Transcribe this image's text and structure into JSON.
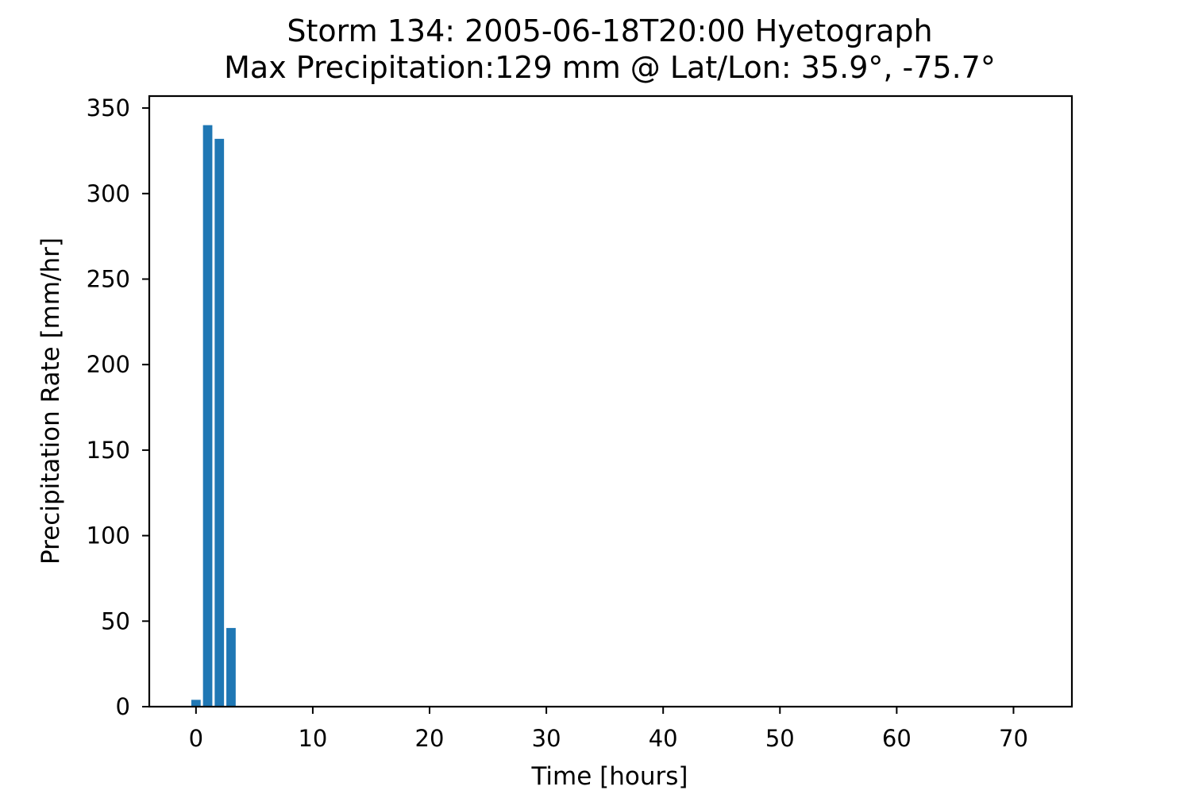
{
  "chart_data": {
    "type": "bar",
    "title": "Storm 134: 2005-06-18T20:00 Hyetograph",
    "subtitle": "Max Precipitation:129 mm @ Lat/Lon:  35.9°, -75.7°",
    "xlabel": "Time [hours]",
    "ylabel": "Precipitation Rate [mm/hr]",
    "x": [
      0,
      1,
      2,
      3,
      4,
      5,
      6,
      7,
      8,
      9,
      10,
      11,
      12,
      13,
      14,
      15,
      16,
      17,
      18,
      19,
      20,
      21,
      22,
      23,
      24,
      25,
      26,
      27,
      28,
      29,
      30,
      31,
      32,
      33,
      34,
      35,
      36,
      37,
      38,
      39,
      40,
      41,
      42,
      43,
      44,
      45,
      46,
      47,
      48,
      49,
      50,
      51,
      52,
      53,
      54,
      55,
      56,
      57,
      58,
      59,
      60,
      61,
      62,
      63,
      64,
      65,
      66,
      67,
      68,
      69,
      70,
      71
    ],
    "values": [
      4,
      340,
      332,
      46,
      0,
      0,
      0,
      0,
      0,
      0,
      0,
      0,
      0,
      0,
      0,
      0,
      0,
      0,
      0,
      0,
      0,
      0,
      0,
      0,
      0,
      0,
      0,
      0,
      0,
      0,
      0,
      0,
      0,
      0,
      0,
      0,
      0,
      0,
      0,
      0,
      0,
      0,
      0,
      0,
      0,
      0,
      0,
      0,
      0,
      0,
      0,
      0,
      0,
      0,
      0,
      0,
      0,
      0,
      0,
      0,
      0,
      0,
      0,
      0,
      0,
      0,
      0,
      0,
      0,
      0,
      0,
      0
    ],
    "bar_width": 0.8,
    "xlim": [
      -4,
      75
    ],
    "ylim": [
      0,
      357
    ],
    "xticks": [
      0,
      10,
      20,
      30,
      40,
      50,
      60,
      70
    ],
    "xtick_labels": [
      "0",
      "10",
      "20",
      "30",
      "40",
      "50",
      "60",
      "70"
    ],
    "yticks": [
      0,
      50,
      100,
      150,
      200,
      250,
      300,
      350
    ],
    "ytick_labels": [
      "0",
      "50",
      "100",
      "150",
      "200",
      "250",
      "300",
      "350"
    ],
    "bar_color": "#1f77b4",
    "grid": false,
    "legend": false
  }
}
